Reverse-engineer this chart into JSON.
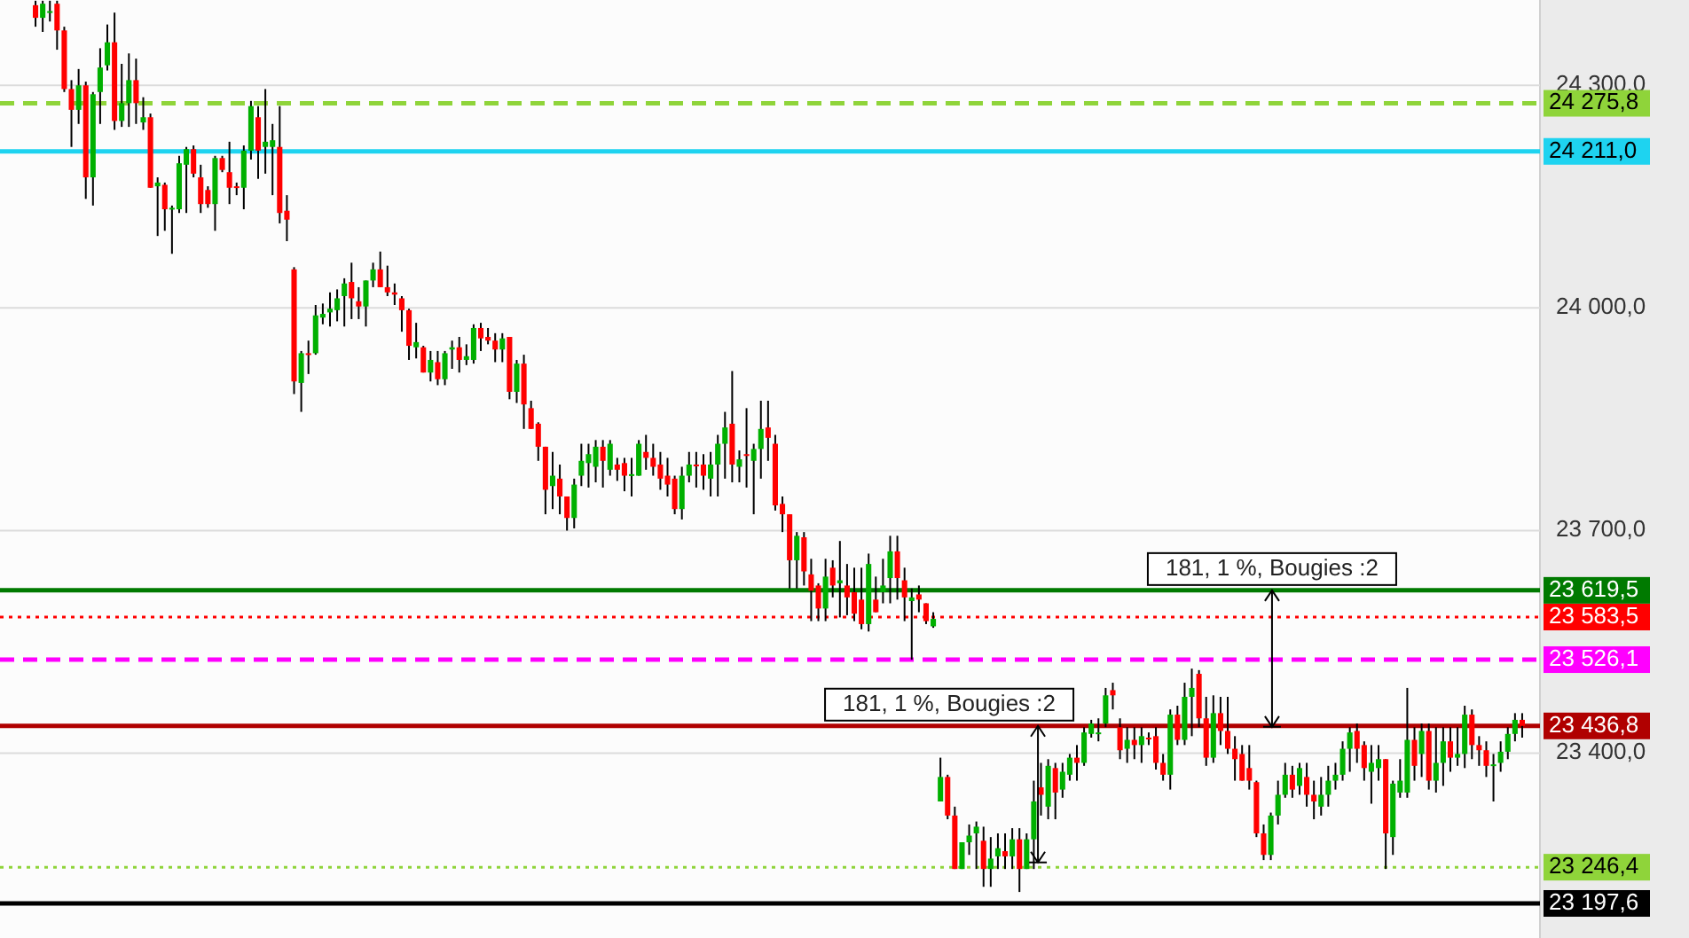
{
  "chart_data": {
    "type": "candlestick",
    "categories": [
      null,
      null,
      null,
      null,
      null,
      null,
      null,
      null,
      null,
      null,
      null,
      null,
      null,
      null,
      null,
      null,
      null,
      null,
      null,
      null,
      null,
      null,
      null,
      null,
      null,
      null,
      null,
      null,
      null,
      null,
      null,
      null,
      null,
      null,
      null,
      null,
      null,
      null,
      null,
      null,
      null,
      null,
      null,
      null,
      null,
      null,
      null,
      null,
      null,
      null,
      null,
      null,
      null,
      null,
      null,
      null,
      null,
      null,
      null,
      null,
      null,
      null,
      null,
      null,
      null,
      null,
      null,
      null,
      null,
      null,
      null,
      null,
      null,
      null,
      null,
      null,
      null,
      null,
      null,
      null,
      null,
      null,
      null,
      null,
      null,
      null,
      null,
      null,
      null,
      null,
      null,
      null,
      null,
      null,
      null,
      null,
      null,
      null,
      null,
      null,
      null,
      null,
      null,
      null,
      null,
      null,
      null,
      null,
      null,
      null,
      null,
      null,
      null,
      null,
      null,
      null,
      null,
      null,
      null,
      null,
      null,
      null,
      null,
      null,
      null,
      null,
      null,
      null,
      null,
      null,
      null,
      null,
      null,
      null,
      null,
      null,
      null,
      null,
      null,
      null,
      null,
      null,
      null,
      null,
      null,
      null,
      null,
      null,
      null,
      null,
      null,
      null,
      null,
      null,
      null,
      null,
      null,
      null,
      null,
      null,
      null,
      null,
      null,
      null,
      null,
      null,
      null,
      null,
      null,
      null,
      null,
      null,
      null,
      null,
      null,
      null,
      null,
      null,
      null,
      null,
      null,
      null,
      null,
      null,
      null,
      null,
      null,
      null,
      null,
      null,
      null,
      null,
      null,
      null,
      null,
      null,
      null,
      null,
      null,
      null,
      null,
      null,
      null,
      null,
      null,
      null,
      null,
      null
    ],
    "ohlc": [
      [
        24408,
        24414,
        24379,
        24391
      ],
      [
        24391,
        24414,
        24372,
        24410
      ],
      [
        24398,
        24414,
        24386,
        24400
      ],
      [
        24410,
        24414,
        24348,
        24374
      ],
      [
        24374,
        24379,
        24291,
        24295
      ],
      [
        24295,
        24307,
        24217,
        24267
      ],
      [
        24267,
        24322,
        24248,
        24300
      ],
      [
        24300,
        24305,
        24147,
        24176
      ],
      [
        24176,
        24291,
        24138,
        24288
      ],
      [
        24291,
        24350,
        24248,
        24324
      ],
      [
        24327,
        24382,
        24320,
        24358
      ],
      [
        24358,
        24398,
        24240,
        24252
      ],
      [
        24252,
        24329,
        24244,
        24276
      ],
      [
        24276,
        24343,
        24244,
        24307
      ],
      [
        24307,
        24336,
        24248,
        24276
      ],
      [
        24250,
        24284,
        24240,
        24257
      ],
      [
        24257,
        24262,
        24162,
        24162
      ],
      [
        24164,
        24176,
        24097,
        24169
      ],
      [
        24166,
        24169,
        24104,
        24133
      ],
      [
        24133,
        24138,
        24073,
        24135
      ],
      [
        24133,
        24205,
        24128,
        24195
      ],
      [
        24193,
        24217,
        24128,
        24214
      ],
      [
        24214,
        24219,
        24176,
        24181
      ],
      [
        24176,
        24193,
        24128,
        24140
      ],
      [
        24159,
        24164,
        24135,
        24140
      ],
      [
        24140,
        24205,
        24104,
        24202
      ],
      [
        24202,
        24205,
        24183,
        24186
      ],
      [
        24183,
        24224,
        24140,
        24162
      ],
      [
        24164,
        24169,
        24152,
        24162
      ],
      [
        24162,
        24219,
        24133,
        24212
      ],
      [
        24212,
        24279,
        24200,
        24272
      ],
      [
        24257,
        24272,
        24174,
        24212
      ],
      [
        24217,
        24295,
        24181,
        24224
      ],
      [
        24217,
        24248,
        24152,
        24226
      ],
      [
        24217,
        24272,
        24114,
        24128
      ],
      [
        24131,
        24152,
        24090,
        24119
      ],
      [
        24052,
        24055,
        23884,
        23901
      ],
      [
        23899,
        23942,
        23860,
        23939
      ],
      [
        23939,
        23956,
        23911,
        23937
      ],
      [
        23939,
        24004,
        23937,
        23990
      ],
      [
        23987,
        24006,
        23978,
        23992
      ],
      [
        23994,
        24021,
        23975,
        23999
      ],
      [
        23997,
        24025,
        23982,
        24013
      ],
      [
        24016,
        24040,
        23975,
        24033
      ],
      [
        24035,
        24061,
        23985,
        24013
      ],
      [
        24009,
        24028,
        23985,
        24002
      ],
      [
        24002,
        24037,
        23975,
        24037
      ],
      [
        24037,
        24061,
        24028,
        24052
      ],
      [
        24052,
        24076,
        24028,
        24028
      ],
      [
        24028,
        24057,
        24016,
        24021
      ],
      [
        24021,
        24033,
        24004,
        24018
      ],
      [
        24013,
        24016,
        23968,
        23997
      ],
      [
        23997,
        23999,
        23930,
        23949
      ],
      [
        23947,
        23980,
        23932,
        23954
      ],
      [
        23947,
        23949,
        23913,
        23913
      ],
      [
        23913,
        23942,
        23901,
        23930
      ],
      [
        23927,
        23942,
        23896,
        23904
      ],
      [
        23904,
        23942,
        23896,
        23939
      ],
      [
        23944,
        23956,
        23918,
        23947
      ],
      [
        23947,
        23961,
        23913,
        23930
      ],
      [
        23930,
        23951,
        23923,
        23935
      ],
      [
        23930,
        23978,
        23925,
        23973
      ],
      [
        23973,
        23980,
        23942,
        23959
      ],
      [
        23961,
        23973,
        23951,
        23956
      ],
      [
        23956,
        23966,
        23927,
        23944
      ],
      [
        23944,
        23966,
        23927,
        23959
      ],
      [
        23961,
        23961,
        23877,
        23887
      ],
      [
        23887,
        23930,
        23872,
        23925
      ],
      [
        23925,
        23937,
        23837,
        23870
      ],
      [
        23865,
        23875,
        23837,
        23837
      ],
      [
        23844,
        23846,
        23794,
        23813
      ],
      [
        23813,
        23813,
        23722,
        23755
      ],
      [
        23760,
        23806,
        23729,
        23774
      ],
      [
        23770,
        23789,
        23722,
        23746
      ],
      [
        23746,
        23746,
        23700,
        23717
      ],
      [
        23717,
        23770,
        23703,
        23762
      ],
      [
        23774,
        23817,
        23760,
        23794
      ],
      [
        23791,
        23817,
        23758,
        23803
      ],
      [
        23786,
        23822,
        23765,
        23813
      ],
      [
        23813,
        23822,
        23758,
        23794
      ],
      [
        23782,
        23822,
        23774,
        23817
      ],
      [
        23789,
        23798,
        23767,
        23782
      ],
      [
        23791,
        23798,
        23753,
        23774
      ],
      [
        23774,
        23798,
        23746,
        23776
      ],
      [
        23774,
        23822,
        23774,
        23817
      ],
      [
        23806,
        23829,
        23782,
        23798
      ],
      [
        23798,
        23817,
        23774,
        23786
      ],
      [
        23789,
        23806,
        23755,
        23770
      ],
      [
        23774,
        23798,
        23746,
        23762
      ],
      [
        23770,
        23774,
        23722,
        23729
      ],
      [
        23729,
        23786,
        23715,
        23774
      ],
      [
        23774,
        23806,
        23765,
        23789
      ],
      [
        23789,
        23806,
        23758,
        23787
      ],
      [
        23789,
        23803,
        23755,
        23774
      ],
      [
        23770,
        23806,
        23746,
        23789
      ],
      [
        23789,
        23829,
        23746,
        23817
      ],
      [
        23817,
        23860,
        23770,
        23839
      ],
      [
        23844,
        23915,
        23765,
        23789
      ],
      [
        23786,
        23808,
        23765,
        23796
      ],
      [
        23803,
        23865,
        23758,
        23801
      ],
      [
        23794,
        23817,
        23722,
        23810
      ],
      [
        23810,
        23875,
        23770,
        23837
      ],
      [
        23839,
        23875,
        23794,
        23825
      ],
      [
        23817,
        23829,
        23727,
        23734
      ],
      [
        23736,
        23746,
        23698,
        23722
      ],
      [
        23722,
        23722,
        23622,
        23660
      ],
      [
        23660,
        23698,
        23622,
        23693
      ],
      [
        23691,
        23698,
        23626,
        23645
      ],
      [
        23641,
        23662,
        23578,
        23619
      ],
      [
        23626,
        23629,
        23578,
        23595
      ],
      [
        23595,
        23662,
        23578,
        23638
      ],
      [
        23650,
        23660,
        23610,
        23626
      ],
      [
        23629,
        23686,
        23583,
        23633
      ],
      [
        23626,
        23655,
        23586,
        23610
      ],
      [
        23617,
        23650,
        23578,
        23588
      ],
      [
        23607,
        23650,
        23567,
        23574
      ],
      [
        23574,
        23669,
        23564,
        23655
      ],
      [
        23607,
        23638,
        23590,
        23590
      ],
      [
        23617,
        23662,
        23602,
        23626
      ],
      [
        23636,
        23693,
        23602,
        23672
      ],
      [
        23672,
        23693,
        23607,
        23636
      ],
      [
        23633,
        23650,
        23578,
        23610
      ],
      [
        23605,
        23622,
        23526,
        23610
      ],
      [
        23614,
        23626,
        23590,
        23607
      ],
      [
        23602,
        23602,
        23574,
        23578
      ],
      [
        23571,
        23590,
        23569,
        23581
      ],
      [
        23335,
        23394,
        23335,
        23368
      ],
      [
        23368,
        23371,
        23311,
        23316
      ],
      [
        23316,
        23328,
        23244,
        23244
      ],
      [
        23244,
        23280,
        23244,
        23280
      ],
      [
        23280,
        23304,
        23263,
        23289
      ],
      [
        23292,
        23308,
        23244,
        23301
      ],
      [
        23282,
        23301,
        23220,
        23244
      ],
      [
        23244,
        23287,
        23220,
        23258
      ],
      [
        23261,
        23292,
        23244,
        23272
      ],
      [
        23268,
        23292,
        23244,
        23261
      ],
      [
        23261,
        23299,
        23244,
        23284
      ],
      [
        23284,
        23299,
        23213,
        23244
      ],
      [
        23244,
        23292,
        23244,
        23284
      ],
      [
        23284,
        23363,
        23244,
        23335
      ],
      [
        23354,
        23387,
        23316,
        23344
      ],
      [
        23328,
        23392,
        23311,
        23383
      ],
      [
        23380,
        23387,
        23311,
        23347
      ],
      [
        23351,
        23387,
        23340,
        23375
      ],
      [
        23371,
        23399,
        23363,
        23394
      ],
      [
        23394,
        23411,
        23363,
        23387
      ],
      [
        23387,
        23435,
        23383,
        23428
      ],
      [
        23426,
        23445,
        23421,
        23440
      ],
      [
        23426,
        23447,
        23416,
        23428
      ],
      [
        23440,
        23488,
        23435,
        23478
      ],
      [
        23485,
        23495,
        23459,
        23478
      ],
      [
        23435,
        23447,
        23392,
        23404
      ],
      [
        23406,
        23435,
        23387,
        23418
      ],
      [
        23418,
        23435,
        23392,
        23411
      ],
      [
        23411,
        23435,
        23387,
        23423
      ],
      [
        23421,
        23428,
        23411,
        23419
      ],
      [
        23423,
        23435,
        23378,
        23387
      ],
      [
        23387,
        23399,
        23363,
        23371
      ],
      [
        23371,
        23459,
        23351,
        23452
      ],
      [
        23452,
        23464,
        23411,
        23418
      ],
      [
        23418,
        23495,
        23411,
        23476
      ],
      [
        23476,
        23514,
        23423,
        23488
      ],
      [
        23507,
        23512,
        23435,
        23447
      ],
      [
        23447,
        23476,
        23383,
        23394
      ],
      [
        23394,
        23478,
        23387,
        23454
      ],
      [
        23454,
        23476,
        23411,
        23430
      ],
      [
        23430,
        23476,
        23399,
        23406
      ],
      [
        23406,
        23423,
        23363,
        23392
      ],
      [
        23399,
        23411,
        23363,
        23363
      ],
      [
        23380,
        23411,
        23351,
        23363
      ],
      [
        23361,
        23363,
        23287,
        23292
      ],
      [
        23292,
        23304,
        23256,
        23263
      ],
      [
        23263,
        23320,
        23256,
        23316
      ],
      [
        23316,
        23363,
        23304,
        23344
      ],
      [
        23344,
        23387,
        23340,
        23371
      ],
      [
        23371,
        23383,
        23340,
        23351
      ],
      [
        23356,
        23387,
        23344,
        23380
      ],
      [
        23368,
        23387,
        23328,
        23344
      ],
      [
        23344,
        23363,
        23311,
        23335
      ],
      [
        23328,
        23368,
        23316,
        23344
      ],
      [
        23344,
        23383,
        23328,
        23363
      ],
      [
        23363,
        23387,
        23351,
        23371
      ],
      [
        23371,
        23416,
        23363,
        23406
      ],
      [
        23406,
        23435,
        23375,
        23428
      ],
      [
        23430,
        23440,
        23387,
        23406
      ],
      [
        23411,
        23416,
        23363,
        23380
      ],
      [
        23375,
        23411,
        23332,
        23387
      ],
      [
        23380,
        23411,
        23363,
        23392
      ],
      [
        23392,
        23392,
        23244,
        23292
      ],
      [
        23287,
        23363,
        23263,
        23359
      ],
      [
        23347,
        23392,
        23340,
        23363
      ],
      [
        23347,
        23488,
        23340,
        23418
      ],
      [
        23418,
        23435,
        23363,
        23383
      ],
      [
        23399,
        23440,
        23368,
        23430
      ],
      [
        23430,
        23440,
        23351,
        23363
      ],
      [
        23363,
        23435,
        23347,
        23387
      ],
      [
        23387,
        23435,
        23356,
        23416
      ],
      [
        23416,
        23435,
        23375,
        23394
      ],
      [
        23394,
        23435,
        23383,
        23399
      ],
      [
        23399,
        23464,
        23380,
        23452
      ],
      [
        23452,
        23459,
        23392,
        23411
      ],
      [
        23411,
        23423,
        23383,
        23404
      ],
      [
        23404,
        23416,
        23368,
        23383
      ],
      [
        23383,
        23399,
        23335,
        23385
      ],
      [
        23387,
        23416,
        23375,
        23402
      ],
      [
        23402,
        23435,
        23392,
        23426
      ],
      [
        23426,
        23454,
        23416,
        23445
      ],
      [
        23445,
        23454,
        23421,
        23436.8
      ]
    ],
    "ylim": [
      23151,
      24415
    ],
    "yticks": [
      {
        "value": 23400,
        "label": "23 400,0"
      },
      {
        "value": 23700,
        "label": "23 700,0"
      },
      {
        "value": 24000,
        "label": "24 000,0"
      },
      {
        "value": 24300,
        "label": "24 300,0"
      }
    ],
    "grid": "y",
    "ref_lines": [
      {
        "axis": "y",
        "value": 24275.8,
        "label": "24 275,8",
        "color": "#8fd43a",
        "line_style": "dashed"
      },
      {
        "axis": "y",
        "value": 24211.0,
        "label": "24 211,0",
        "color": "#1ed3f0",
        "line_style": "solid"
      },
      {
        "axis": "y",
        "value": 23619.5,
        "label": "23 619,5",
        "color": "#007a00",
        "line_style": "solid"
      },
      {
        "axis": "y",
        "value": 23583.5,
        "label": "23 583,5",
        "color": "#ff0000",
        "line_style": "dotted"
      },
      {
        "axis": "y",
        "value": 23526.1,
        "label": "23 526,1",
        "color": "#ff00ff",
        "line_style": "dashed"
      },
      {
        "axis": "y",
        "value": 23436.8,
        "label": "23 436,8",
        "color": "#b00000",
        "line_style": "solid"
      },
      {
        "axis": "y",
        "value": 23246.4,
        "label": "23 246,4",
        "color": "#8fd43a",
        "line_style": "dotted"
      },
      {
        "axis": "y",
        "value": 23197.6,
        "label": "23 197,6",
        "color": "#000000",
        "line_style": "solid"
      }
    ],
    "annotations": [
      {
        "text": "181, 1 %, Bougies :2",
        "y": 23619.5
      },
      {
        "text": "181, 1 %, Bougies :2",
        "y": 23436.8
      }
    ]
  }
}
